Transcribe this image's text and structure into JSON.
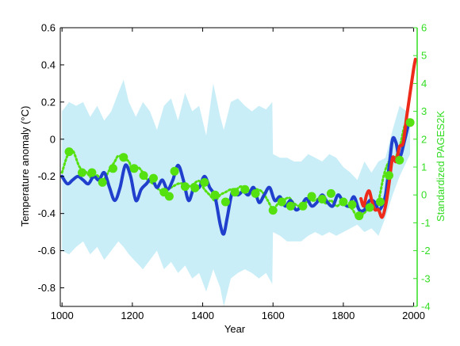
{
  "chart_data": {
    "type": "line",
    "title": "",
    "xlabel": "Year",
    "ylabel": "Temperature anomaly (°C)",
    "ylabel_right": "Standardized PAGES2K",
    "xlim": [
      995,
      2010
    ],
    "ylim": [
      -0.9,
      0.6
    ],
    "ylim_right": [
      -4,
      6
    ],
    "x_ticks": [
      1000,
      1200,
      1400,
      1600,
      1800,
      2000
    ],
    "y_ticks": [
      -0.8,
      -0.6,
      -0.4,
      -0.2,
      0,
      0.2,
      0.4,
      0.6
    ],
    "y_tick_labels": [
      "-0.8",
      "-0.6",
      "-0.4",
      "-0.2",
      "0",
      "0.2",
      "0.4",
      "0.6"
    ],
    "y_ticks_right": [
      -4,
      -3,
      -2,
      -1,
      0,
      1,
      2,
      3,
      4,
      5,
      6
    ],
    "grid": false,
    "colors": {
      "uncertainty": "#c9eef8",
      "reconstruction": "#1f3fcc",
      "instrumental": "#ee2a1a",
      "pages2k": "#55e010",
      "right_axis": "#33dd22",
      "axis": "#000000"
    },
    "series": [
      {
        "role": "uncertainty-band",
        "x": [
          1000,
          1020,
          1040,
          1060,
          1080,
          1100,
          1120,
          1140,
          1160,
          1175,
          1190,
          1210,
          1230,
          1250,
          1270,
          1290,
          1310,
          1330,
          1350,
          1370,
          1390,
          1410,
          1430,
          1450,
          1460,
          1480,
          1500,
          1520,
          1540,
          1560,
          1580,
          1598,
          1600,
          1620,
          1640,
          1660,
          1680,
          1700,
          1720,
          1740,
          1760,
          1780,
          1800,
          1820,
          1840,
          1860,
          1880,
          1900,
          1920,
          1940,
          1960,
          1980,
          1990
        ],
        "upper": [
          0.15,
          0.2,
          0.18,
          0.2,
          0.12,
          0.18,
          0.1,
          0.15,
          0.25,
          0.32,
          0.2,
          0.12,
          0.2,
          0.15,
          0.05,
          0.18,
          0.22,
          0.1,
          0.25,
          0.15,
          0.18,
          0.02,
          0.3,
          0.12,
          0.05,
          0.2,
          0.22,
          0.18,
          0.15,
          0.18,
          0.16,
          0.2,
          -0.08,
          -0.1,
          -0.1,
          -0.12,
          -0.12,
          -0.08,
          -0.1,
          -0.12,
          -0.08,
          -0.1,
          -0.15,
          -0.18,
          -0.22,
          -0.12,
          -0.18,
          -0.12,
          -0.1,
          0.05,
          0.18,
          0.15,
          0.08
        ],
        "lower": [
          -0.6,
          -0.62,
          -0.58,
          -0.55,
          -0.62,
          -0.58,
          -0.65,
          -0.6,
          -0.55,
          -0.58,
          -0.62,
          -0.66,
          -0.7,
          -0.65,
          -0.6,
          -0.7,
          -0.66,
          -0.72,
          -0.68,
          -0.75,
          -0.72,
          -0.82,
          -0.7,
          -0.8,
          -0.9,
          -0.75,
          -0.72,
          -0.7,
          -0.72,
          -0.75,
          -0.72,
          -0.78,
          -0.5,
          -0.52,
          -0.55,
          -0.55,
          -0.55,
          -0.52,
          -0.5,
          -0.52,
          -0.5,
          -0.52,
          -0.5,
          -0.48,
          -0.46,
          -0.5,
          -0.48,
          -0.52,
          -0.42,
          -0.3,
          -0.2,
          -0.12,
          -0.08
        ]
      },
      {
        "role": "reconstruction",
        "x": [
          1000,
          1015,
          1030,
          1045,
          1060,
          1075,
          1090,
          1105,
          1120,
          1135,
          1150,
          1165,
          1180,
          1195,
          1210,
          1225,
          1240,
          1255,
          1270,
          1285,
          1300,
          1315,
          1330,
          1345,
          1360,
          1375,
          1390,
          1405,
          1420,
          1435,
          1450,
          1460,
          1470,
          1485,
          1500,
          1515,
          1530,
          1545,
          1560,
          1575,
          1590,
          1605,
          1620,
          1635,
          1650,
          1665,
          1680,
          1695,
          1710,
          1725,
          1740,
          1755,
          1770,
          1785,
          1800,
          1815,
          1830,
          1845,
          1860,
          1875,
          1890,
          1900,
          1910,
          1920,
          1930,
          1940,
          1950,
          1960,
          1975,
          1985
        ],
        "values": [
          -0.2,
          -0.24,
          -0.22,
          -0.2,
          -0.22,
          -0.24,
          -0.2,
          -0.22,
          -0.18,
          -0.26,
          -0.33,
          -0.26,
          -0.14,
          -0.2,
          -0.33,
          -0.27,
          -0.24,
          -0.21,
          -0.26,
          -0.22,
          -0.27,
          -0.22,
          -0.14,
          -0.22,
          -0.33,
          -0.26,
          -0.26,
          -0.2,
          -0.26,
          -0.31,
          -0.46,
          -0.51,
          -0.42,
          -0.28,
          -0.3,
          -0.28,
          -0.3,
          -0.26,
          -0.34,
          -0.3,
          -0.26,
          -0.33,
          -0.31,
          -0.36,
          -0.33,
          -0.38,
          -0.36,
          -0.32,
          -0.36,
          -0.34,
          -0.3,
          -0.34,
          -0.36,
          -0.3,
          -0.34,
          -0.36,
          -0.31,
          -0.38,
          -0.38,
          -0.33,
          -0.34,
          -0.38,
          -0.36,
          -0.3,
          -0.15,
          0.0,
          -0.02,
          -0.1,
          0.0,
          0.08
        ]
      },
      {
        "role": "instrumental",
        "x": [
          1850,
          1858,
          1866,
          1874,
          1882,
          1890,
          1900,
          1910,
          1920,
          1930,
          1940,
          1950,
          1960,
          1970,
          1980,
          1990,
          2000,
          2005
        ],
        "values": [
          -0.32,
          -0.36,
          -0.3,
          -0.28,
          -0.34,
          -0.38,
          -0.38,
          -0.42,
          -0.36,
          -0.24,
          -0.1,
          -0.12,
          -0.04,
          -0.02,
          0.12,
          0.25,
          0.38,
          0.43
        ]
      },
      {
        "role": "pages2k-standardized",
        "axis": "right",
        "x": [
          1000,
          1015,
          1030,
          1050,
          1070,
          1085,
          1100,
          1115,
          1135,
          1150,
          1160,
          1175,
          1190,
          1200,
          1215,
          1230,
          1245,
          1260,
          1275,
          1290,
          1300,
          1315,
          1330,
          1345,
          1360,
          1375,
          1390,
          1405,
          1420,
          1435,
          1450,
          1465,
          1480,
          1495,
          1510,
          1525,
          1540,
          1555,
          1570,
          1585,
          1600,
          1615,
          1630,
          1645,
          1660,
          1675,
          1690,
          1705,
          1720,
          1735,
          1750,
          1765,
          1780,
          1795,
          1810,
          1825,
          1840,
          1855,
          1870,
          1885,
          1900,
          1915,
          1930,
          1945,
          1960,
          1975,
          1990
        ],
        "values": [
          0.8,
          1.4,
          1.6,
          1.0,
          0.8,
          0.6,
          0.7,
          0.5,
          0.9,
          1.2,
          1.4,
          1.3,
          1.2,
          0.9,
          1.0,
          0.8,
          0.5,
          0.4,
          0.2,
          0.1,
          0.2,
          0.3,
          0.4,
          0.4,
          0.3,
          0.4,
          0.5,
          0.2,
          0.0,
          -0.2,
          0.0,
          0.1,
          0.2,
          0.2,
          0.3,
          0.1,
          0.2,
          0.2,
          0.1,
          -0.2,
          -0.5,
          -0.3,
          -0.2,
          -0.1,
          -0.3,
          -0.4,
          -0.3,
          -0.2,
          -0.2,
          -0.1,
          -0.3,
          -0.2,
          -0.4,
          -0.3,
          -0.4,
          -0.5,
          -0.8,
          -0.7,
          -0.5,
          -0.3,
          -0.2,
          0.7,
          1.2,
          1.3,
          1.7,
          2.5,
          2.6
        ]
      },
      {
        "role": "pages2k-markers",
        "axis": "right",
        "x": [
          1020,
          1057,
          1085,
          1115,
          1145,
          1175,
          1205,
          1232,
          1260,
          1290,
          1305,
          1320,
          1350,
          1378,
          1405,
          1435,
          1465,
          1492,
          1520,
          1550,
          1600,
          1625,
          1650,
          1685,
          1710,
          1740,
          1765,
          1800,
          1825,
          1845,
          1875,
          1905,
          1930,
          1960,
          1990
        ],
        "values": [
          1.55,
          0.8,
          0.8,
          0.45,
          0.95,
          1.35,
          0.95,
          0.7,
          0.6,
          0.1,
          -0.05,
          0.85,
          0.3,
          0.25,
          0.45,
          0.0,
          -0.25,
          0.1,
          0.2,
          0.05,
          -0.55,
          -0.25,
          -0.4,
          -0.4,
          -0.05,
          -0.15,
          0.05,
          -0.25,
          -0.35,
          -0.75,
          -0.45,
          -0.25,
          0.7,
          1.25,
          2.6
        ]
      }
    ]
  }
}
